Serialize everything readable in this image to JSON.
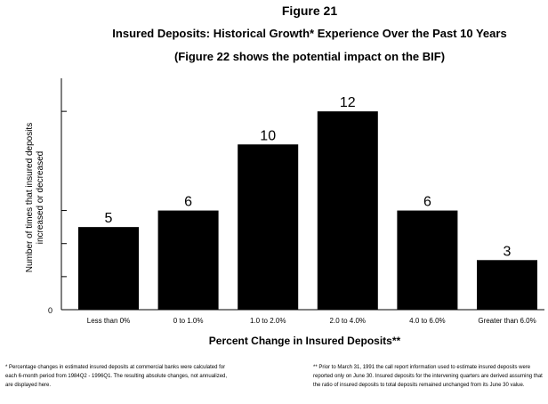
{
  "chart_data": {
    "type": "bar",
    "title": "Figure 21",
    "subtitle": "Insured Deposits: Historical Growth* Experience Over the Past 10 Years",
    "subtitle2": "(Figure 22 shows the potential impact on the BIF)",
    "xlabel": "Percent Change in Insured Deposits**",
    "ylabel": "Number of times that insured deposits\nincreased or decreased",
    "categories": [
      "Less than 0%",
      "0 to 1.0%",
      "1.0 to 2.0%",
      "2.0 to 4.0%",
      "4.0 to 6.0%",
      "Greater than 6.0%"
    ],
    "values": [
      5,
      6,
      10,
      12,
      6,
      3
    ],
    "ylim": [
      0,
      14
    ],
    "y_tick_label": "0",
    "bar_color": "#000000",
    "grid": false,
    "legend": "none"
  },
  "footnotes": {
    "left": "* Percentage changes in estimated insured deposits at commercial banks were calculated for each 6-month period from 1984Q2 - 1996Q1. The resulting absolute changes, not annualized, are displayed here.",
    "right": "** Prior to March 31, 1991 the call report information used to estimate insured deposits were reported only on June 30. Insured deposits for the intervening quarters are derived assuming that the ratio of insured deposits to total deposits remained unchanged from its June 30 value."
  }
}
